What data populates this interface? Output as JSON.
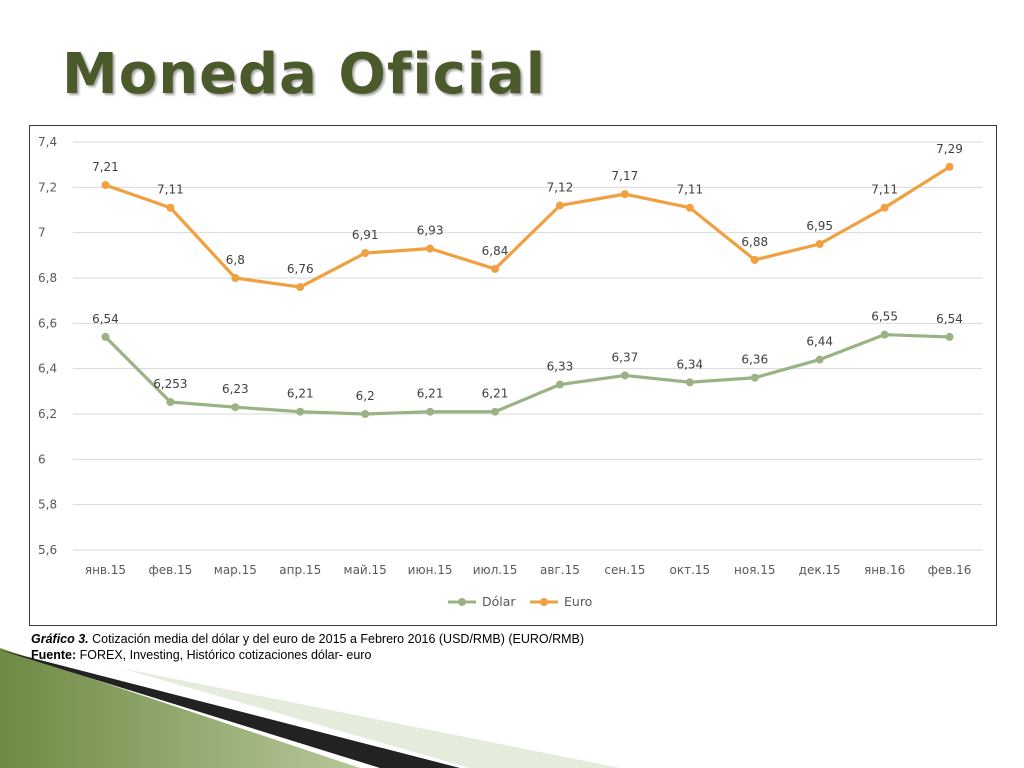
{
  "slide": {
    "title": "Moneda Oficial",
    "caption_lead": "Gráfico 3.",
    "caption_text": " Cotización media del dólar y del euro de 2015 a Febrero 2016 (USD/RMB) (EURO/RMB)",
    "source_lead": "Fuente:",
    "source_text": " FOREX, Investing, Histórico cotizaciones dólar- euro"
  },
  "colors": {
    "title": "#4a5a2a",
    "dolar": "#9bb384",
    "euro": "#f0a040",
    "grid": "#d9d9d9",
    "decor_green": "#7d9a4e"
  },
  "chart_data": {
    "type": "line",
    "title": "",
    "xlabel": "",
    "ylabel": "",
    "categories": [
      "янв.15",
      "фев.15",
      "мар.15",
      "апр.15",
      "май.15",
      "июн.15",
      "июл.15",
      "авг.15",
      "сен.15",
      "окт.15",
      "ноя.15",
      "дек.15",
      "янв.16",
      "фев.16"
    ],
    "y_ticks": [
      "7,4",
      "7,2",
      "7",
      "6,8",
      "6,6",
      "6,4",
      "6,2",
      "6",
      "5,8",
      "5,6"
    ],
    "ylim": [
      5.6,
      7.4
    ],
    "grid": true,
    "legend_position": "bottom",
    "series": [
      {
        "name": "Dólar",
        "values": [
          6.54,
          6.253,
          6.23,
          6.21,
          6.2,
          6.21,
          6.21,
          6.33,
          6.37,
          6.34,
          6.36,
          6.44,
          6.55,
          6.54
        ],
        "labels": [
          "6,54",
          "6,253",
          "6,23",
          "6,21",
          "6,2",
          "6,21",
          "6,21",
          "6,33",
          "6,37",
          "6,34",
          "6,36",
          "6,44",
          "6,55",
          "6,54"
        ]
      },
      {
        "name": "Euro",
        "values": [
          7.21,
          7.11,
          6.8,
          6.76,
          6.91,
          6.93,
          6.84,
          7.12,
          7.17,
          7.11,
          6.88,
          6.95,
          7.11,
          7.29
        ],
        "labels": [
          "7,21",
          "7,11",
          "6,8",
          "6,76",
          "6,91",
          "6,93",
          "6,84",
          "7,12",
          "7,17",
          "7,11",
          "6,88",
          "6,95",
          "7,11",
          "7,29"
        ]
      }
    ]
  }
}
